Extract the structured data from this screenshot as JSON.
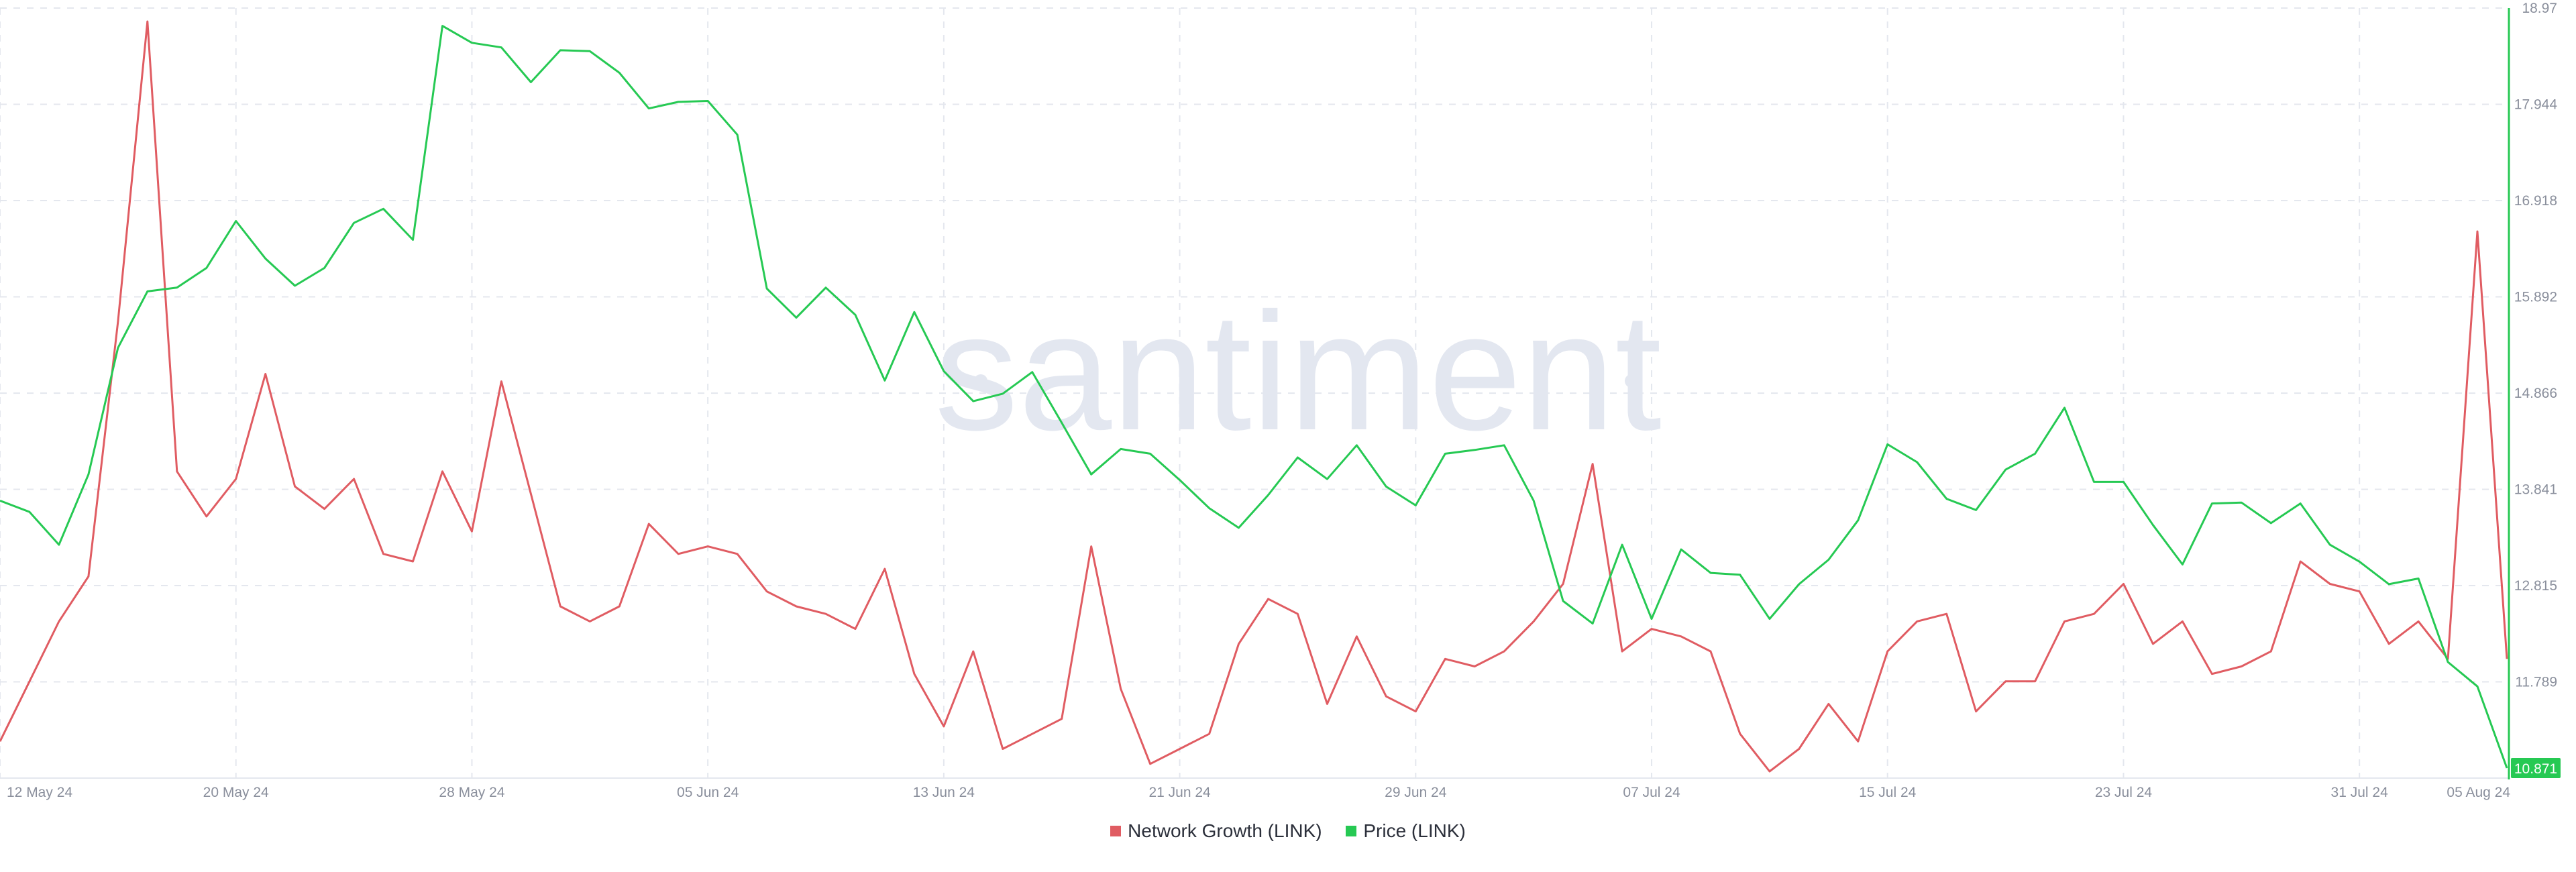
{
  "watermark": "santiment",
  "chart_data": {
    "type": "line",
    "title": "",
    "xlabel": "",
    "ylabel": "",
    "x": [
      "2024-05-12",
      "2024-05-13",
      "2024-05-14",
      "2024-05-15",
      "2024-05-16",
      "2024-05-17",
      "2024-05-18",
      "2024-05-19",
      "2024-05-20",
      "2024-05-21",
      "2024-05-22",
      "2024-05-23",
      "2024-05-24",
      "2024-05-25",
      "2024-05-26",
      "2024-05-27",
      "2024-05-28",
      "2024-05-29",
      "2024-05-30",
      "2024-05-31",
      "2024-06-01",
      "2024-06-02",
      "2024-06-03",
      "2024-06-04",
      "2024-06-05",
      "2024-06-06",
      "2024-06-07",
      "2024-06-08",
      "2024-06-09",
      "2024-06-10",
      "2024-06-11",
      "2024-06-12",
      "2024-06-13",
      "2024-06-14",
      "2024-06-15",
      "2024-06-16",
      "2024-06-17",
      "2024-06-18",
      "2024-06-19",
      "2024-06-20",
      "2024-06-21",
      "2024-06-22",
      "2024-06-23",
      "2024-06-24",
      "2024-06-25",
      "2024-06-26",
      "2024-06-27",
      "2024-06-28",
      "2024-06-29",
      "2024-06-30",
      "2024-07-01",
      "2024-07-02",
      "2024-07-03",
      "2024-07-04",
      "2024-07-05",
      "2024-07-06",
      "2024-07-07",
      "2024-07-08",
      "2024-07-09",
      "2024-07-10",
      "2024-07-11",
      "2024-07-12",
      "2024-07-13",
      "2024-07-14",
      "2024-07-15",
      "2024-07-16",
      "2024-07-17",
      "2024-07-18",
      "2024-07-19",
      "2024-07-20",
      "2024-07-21",
      "2024-07-22",
      "2024-07-23",
      "2024-07-24",
      "2024-07-25",
      "2024-07-26",
      "2024-07-27",
      "2024-07-28",
      "2024-07-29",
      "2024-07-30",
      "2024-07-31",
      "2024-08-01",
      "2024-08-02",
      "2024-08-03",
      "2024-08-04",
      "2024-08-05"
    ],
    "x_tick_labels": [
      {
        "date": "2024-05-12",
        "label": "12 May 24"
      },
      {
        "date": "2024-05-20",
        "label": "20 May 24"
      },
      {
        "date": "2024-05-28",
        "label": "28 May 24"
      },
      {
        "date": "2024-06-05",
        "label": "05 Jun 24"
      },
      {
        "date": "2024-06-13",
        "label": "13 Jun 24"
      },
      {
        "date": "2024-06-21",
        "label": "21 Jun 24"
      },
      {
        "date": "2024-06-29",
        "label": "29 Jun 24"
      },
      {
        "date": "2024-07-07",
        "label": "07 Jul 24"
      },
      {
        "date": "2024-07-15",
        "label": "15 Jul 24"
      },
      {
        "date": "2024-07-23",
        "label": "23 Jul 24"
      },
      {
        "date": "2024-07-31",
        "label": "31 Jul 24"
      },
      {
        "date": "2024-08-05",
        "label": "05 Aug 24"
      }
    ],
    "y_axis": {
      "side": "right",
      "ticks": [
        "18.97",
        "17.944",
        "16.918",
        "15.892",
        "14.866",
        "13.841",
        "12.815",
        "11.789"
      ],
      "ylim": [
        10.763,
        18.97
      ],
      "current_value_label": "10.871"
    },
    "grid": true,
    "legend_position": "bottom-center",
    "series": [
      {
        "name": "Network Growth (LINK)",
        "color": "#e05c62",
        "axis": "hidden-left",
        "values": [
          4,
          12,
          20,
          26,
          60,
          100,
          40,
          34,
          39,
          53,
          38,
          35,
          39,
          29,
          28,
          40,
          32,
          52,
          37,
          22,
          20,
          22,
          33,
          29,
          30,
          29,
          24,
          22,
          21,
          19,
          27,
          13,
          6,
          16,
          3,
          5,
          7,
          30,
          11,
          1,
          3,
          5,
          17,
          23,
          21,
          9,
          18,
          10,
          8,
          15,
          14,
          16,
          20,
          25,
          41,
          16,
          19,
          18,
          16,
          5,
          0,
          3,
          9,
          4,
          16,
          20,
          21,
          8,
          12,
          12,
          20,
          21,
          25,
          17,
          20,
          13,
          14,
          16,
          28,
          25,
          24,
          17,
          20,
          15,
          72,
          15
        ]
      },
      {
        "name": "Price (LINK)",
        "color": "#26c953",
        "axis": "right",
        "values": [
          13.72,
          13.6,
          13.25,
          14.0,
          15.35,
          15.95,
          15.99,
          16.2,
          16.7,
          16.3,
          16.01,
          16.2,
          16.68,
          16.83,
          16.5,
          18.78,
          18.6,
          18.55,
          18.18,
          18.52,
          18.51,
          18.28,
          17.9,
          17.97,
          17.98,
          17.62,
          15.98,
          15.67,
          15.99,
          15.7,
          15.0,
          15.73,
          15.1,
          14.78,
          14.86,
          15.09,
          14.55,
          14.0,
          14.27,
          14.22,
          13.94,
          13.64,
          13.43,
          13.78,
          14.18,
          13.95,
          14.31,
          13.87,
          13.67,
          14.22,
          14.26,
          14.31,
          13.72,
          12.65,
          12.41,
          13.25,
          12.46,
          13.2,
          12.95,
          12.93,
          12.46,
          12.83,
          13.09,
          13.51,
          14.32,
          14.13,
          13.74,
          13.62,
          14.05,
          14.22,
          14.71,
          13.92,
          13.92,
          13.46,
          13.04,
          13.69,
          13.7,
          13.48,
          13.69,
          13.25,
          13.07,
          12.83,
          12.89,
          12.0,
          11.74,
          10.87
        ]
      }
    ]
  }
}
